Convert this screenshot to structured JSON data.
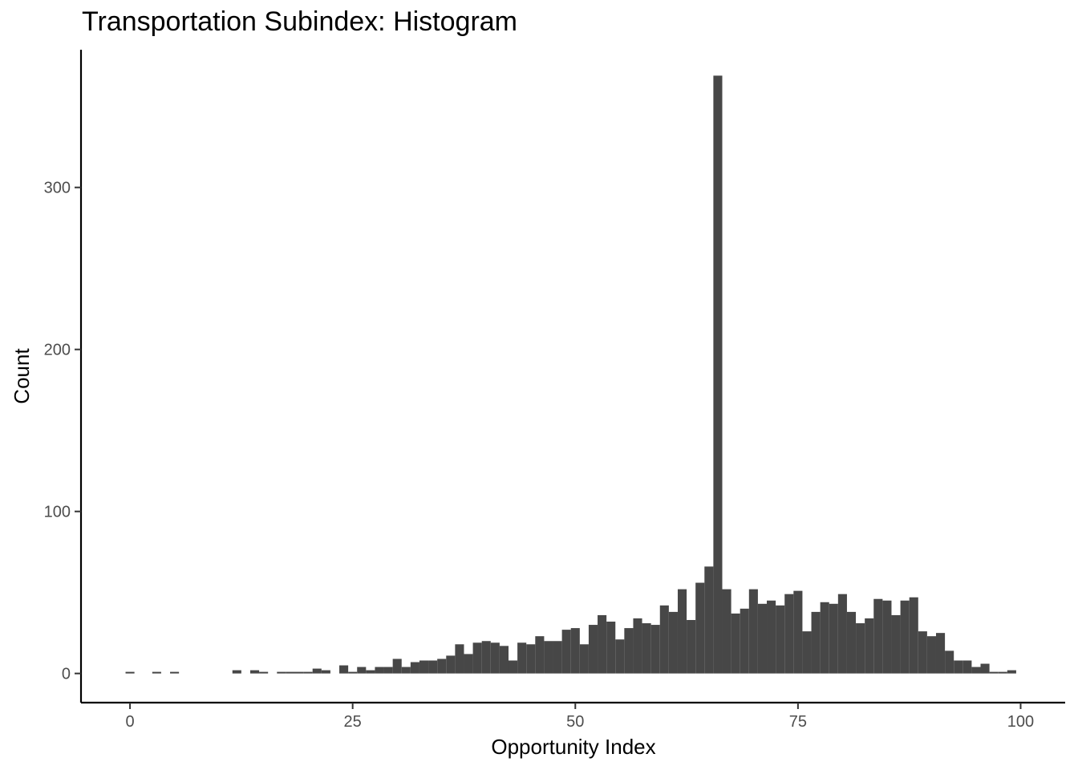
{
  "chart_data": {
    "type": "bar",
    "title": "Transportation Subindex: Histogram",
    "xlabel": "Opportunity Index",
    "ylabel": "Count",
    "xlim": [
      -5.5,
      105
    ],
    "ylim": [
      -18,
      385
    ],
    "xticks": [
      0,
      25,
      50,
      75,
      100
    ],
    "yticks": [
      0,
      100,
      200,
      300
    ],
    "bin_width": 1,
    "bar_color": "#474747",
    "axis_color": "#000000",
    "grid": false,
    "legend": "none",
    "bins": [
      {
        "x": 0,
        "count": 1
      },
      {
        "x": 3,
        "count": 1
      },
      {
        "x": 5,
        "count": 1
      },
      {
        "x": 12,
        "count": 2
      },
      {
        "x": 14,
        "count": 2
      },
      {
        "x": 15,
        "count": 1
      },
      {
        "x": 17,
        "count": 1
      },
      {
        "x": 18,
        "count": 1
      },
      {
        "x": 19,
        "count": 1
      },
      {
        "x": 20,
        "count": 1
      },
      {
        "x": 21,
        "count": 3
      },
      {
        "x": 22,
        "count": 2
      },
      {
        "x": 24,
        "count": 5
      },
      {
        "x": 25,
        "count": 1
      },
      {
        "x": 26,
        "count": 4
      },
      {
        "x": 27,
        "count": 2
      },
      {
        "x": 28,
        "count": 4
      },
      {
        "x": 29,
        "count": 4
      },
      {
        "x": 30,
        "count": 9
      },
      {
        "x": 31,
        "count": 4
      },
      {
        "x": 32,
        "count": 7
      },
      {
        "x": 33,
        "count": 8
      },
      {
        "x": 34,
        "count": 8
      },
      {
        "x": 35,
        "count": 9
      },
      {
        "x": 36,
        "count": 11
      },
      {
        "x": 37,
        "count": 18
      },
      {
        "x": 38,
        "count": 12
      },
      {
        "x": 39,
        "count": 19
      },
      {
        "x": 40,
        "count": 20
      },
      {
        "x": 41,
        "count": 19
      },
      {
        "x": 42,
        "count": 17
      },
      {
        "x": 43,
        "count": 8
      },
      {
        "x": 44,
        "count": 19
      },
      {
        "x": 45,
        "count": 18
      },
      {
        "x": 46,
        "count": 23
      },
      {
        "x": 47,
        "count": 20
      },
      {
        "x": 48,
        "count": 20
      },
      {
        "x": 49,
        "count": 27
      },
      {
        "x": 50,
        "count": 28
      },
      {
        "x": 51,
        "count": 18
      },
      {
        "x": 52,
        "count": 30
      },
      {
        "x": 53,
        "count": 36
      },
      {
        "x": 54,
        "count": 32
      },
      {
        "x": 55,
        "count": 21
      },
      {
        "x": 56,
        "count": 28
      },
      {
        "x": 57,
        "count": 34
      },
      {
        "x": 58,
        "count": 31
      },
      {
        "x": 59,
        "count": 30
      },
      {
        "x": 60,
        "count": 42
      },
      {
        "x": 61,
        "count": 38
      },
      {
        "x": 62,
        "count": 52
      },
      {
        "x": 63,
        "count": 33
      },
      {
        "x": 64,
        "count": 56
      },
      {
        "x": 65,
        "count": 66
      },
      {
        "x": 66,
        "count": 369
      },
      {
        "x": 67,
        "count": 52
      },
      {
        "x": 68,
        "count": 37
      },
      {
        "x": 69,
        "count": 40
      },
      {
        "x": 70,
        "count": 52
      },
      {
        "x": 71,
        "count": 43
      },
      {
        "x": 72,
        "count": 45
      },
      {
        "x": 73,
        "count": 42
      },
      {
        "x": 74,
        "count": 49
      },
      {
        "x": 75,
        "count": 51
      },
      {
        "x": 76,
        "count": 26
      },
      {
        "x": 77,
        "count": 38
      },
      {
        "x": 78,
        "count": 44
      },
      {
        "x": 79,
        "count": 43
      },
      {
        "x": 80,
        "count": 49
      },
      {
        "x": 81,
        "count": 38
      },
      {
        "x": 82,
        "count": 31
      },
      {
        "x": 83,
        "count": 34
      },
      {
        "x": 84,
        "count": 46
      },
      {
        "x": 85,
        "count": 45
      },
      {
        "x": 86,
        "count": 36
      },
      {
        "x": 87,
        "count": 45
      },
      {
        "x": 88,
        "count": 47
      },
      {
        "x": 89,
        "count": 26
      },
      {
        "x": 90,
        "count": 23
      },
      {
        "x": 91,
        "count": 25
      },
      {
        "x": 92,
        "count": 14
      },
      {
        "x": 93,
        "count": 8
      },
      {
        "x": 94,
        "count": 8
      },
      {
        "x": 95,
        "count": 4
      },
      {
        "x": 96,
        "count": 6
      },
      {
        "x": 97,
        "count": 1
      },
      {
        "x": 98,
        "count": 1
      },
      {
        "x": 99,
        "count": 2
      }
    ]
  }
}
